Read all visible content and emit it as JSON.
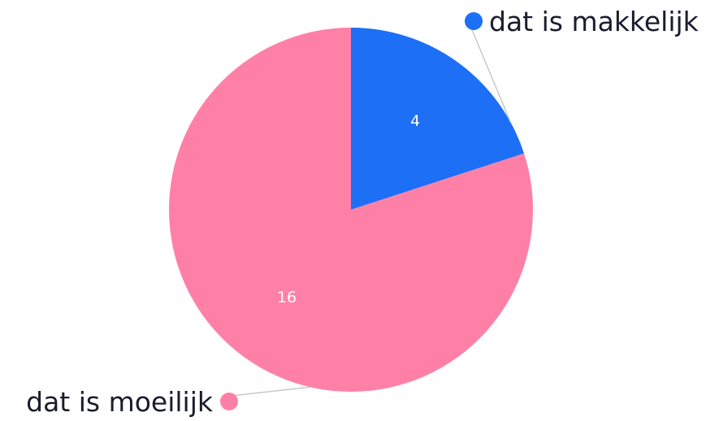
{
  "chart_data": {
    "type": "pie",
    "title": "",
    "slices": [
      {
        "label": "dat is makkelijk",
        "value": 4,
        "color": "#1d6ff5"
      },
      {
        "label": "dat is moeilijk",
        "value": 16,
        "color": "#ff80a6"
      }
    ],
    "start_angle_deg": 0,
    "direction": "clockwise",
    "legend": "callout-labels"
  },
  "colors": {
    "leader_line": "#c9c9c9",
    "label_text": "#1b1b2f",
    "value_text": "#ffffff"
  }
}
